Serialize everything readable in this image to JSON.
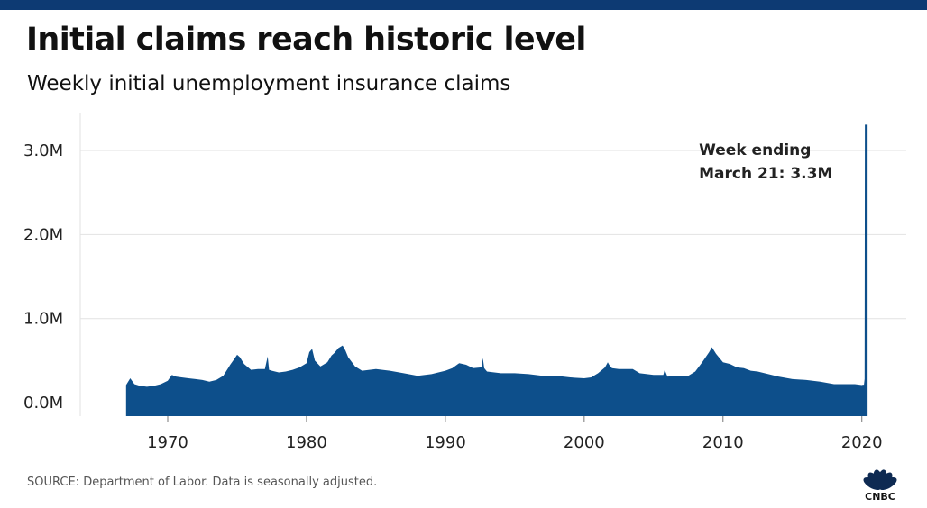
{
  "header": {
    "title": "Initial claims reach historic level",
    "subtitle": "Weekly initial unemployment insurance claims"
  },
  "footer": {
    "source": "SOURCE: Department of Labor. Data is seasonally adjusted.",
    "logo_text": "CNBC"
  },
  "colors": {
    "bar": "#0d4f8b",
    "topbar": "#0d3a73",
    "grid": "#e2e2e2"
  },
  "chart_data": {
    "type": "area",
    "title": "Initial claims reach historic level",
    "subtitle": "Weekly initial unemployment insurance claims",
    "xlabel": "",
    "ylabel": "",
    "x_ticks": [
      1970,
      1980,
      1990,
      2000,
      2010,
      2020
    ],
    "y_ticks": [
      {
        "value": 0,
        "label": "0.0M"
      },
      {
        "value": 1000000,
        "label": "1.0M"
      },
      {
        "value": 2000000,
        "label": "2.0M"
      },
      {
        "value": 3000000,
        "label": "3.0M"
      }
    ],
    "xlim": [
      1963.7,
      2023.2
    ],
    "ylim": [
      -160000,
      3450000
    ],
    "grid": true,
    "annotation": {
      "lines": [
        "Week ending",
        "March 21: 3.3M"
      ],
      "x": 2020.22,
      "y": 3307000
    },
    "series": [
      {
        "x": [
          1967.0,
          1967.3,
          1967.6,
          1968.0,
          1968.5,
          1969.0,
          1969.5,
          1970.0,
          1970.3,
          1970.6,
          1971.0,
          1971.5,
          1972.0,
          1972.5,
          1973.0,
          1973.5,
          1974.0,
          1974.5,
          1974.8,
          1975.0,
          1975.2,
          1975.5,
          1976.0,
          1976.5,
          1977.0,
          1977.2,
          1977.3,
          1977.5,
          1978.0,
          1978.5,
          1979.0,
          1979.5,
          1980.0,
          1980.2,
          1980.4,
          1980.6,
          1981.0,
          1981.5,
          1981.8,
          1982.0,
          1982.3,
          1982.6,
          1982.8,
          1983.0,
          1983.5,
          1984.0,
          1985.0,
          1986.0,
          1987.0,
          1988.0,
          1989.0,
          1990.0,
          1990.5,
          1991.0,
          1991.5,
          1992.0,
          1992.6,
          1992.7,
          1992.8,
          1993.0,
          1994.0,
          1995.0,
          1996.0,
          1997.0,
          1998.0,
          1999.0,
          2000.0,
          2000.5,
          2001.0,
          2001.5,
          2001.7,
          2001.8,
          2002.0,
          2002.5,
          2003.0,
          2003.5,
          2004.0,
          2005.0,
          2005.7,
          2005.8,
          2006.0,
          2007.0,
          2007.5,
          2008.0,
          2008.5,
          2009.0,
          2009.2,
          2009.5,
          2010.0,
          2010.5,
          2011.0,
          2011.5,
          2012.0,
          2012.5,
          2013.0,
          2014.0,
          2015.0,
          2016.0,
          2017.0,
          2018.0,
          2019.0,
          2019.5,
          2020.0,
          2020.1,
          2020.15,
          2020.2,
          2020.22
        ],
        "values": [
          210000,
          290000,
          220000,
          200000,
          190000,
          200000,
          220000,
          260000,
          330000,
          310000,
          300000,
          290000,
          280000,
          270000,
          250000,
          270000,
          320000,
          450000,
          520000,
          570000,
          540000,
          460000,
          390000,
          400000,
          400000,
          550000,
          390000,
          380000,
          360000,
          370000,
          390000,
          420000,
          470000,
          600000,
          640000,
          500000,
          430000,
          480000,
          560000,
          590000,
          650000,
          680000,
          620000,
          540000,
          430000,
          380000,
          400000,
          380000,
          350000,
          320000,
          340000,
          380000,
          410000,
          470000,
          450000,
          410000,
          420000,
          530000,
          410000,
          370000,
          350000,
          350000,
          340000,
          320000,
          320000,
          300000,
          290000,
          300000,
          350000,
          420000,
          480000,
          450000,
          410000,
          400000,
          400000,
          400000,
          350000,
          330000,
          330000,
          390000,
          310000,
          320000,
          320000,
          370000,
          480000,
          600000,
          660000,
          580000,
          480000,
          460000,
          420000,
          410000,
          380000,
          370000,
          350000,
          310000,
          280000,
          270000,
          250000,
          220000,
          220000,
          220000,
          210000,
          215000,
          211000,
          282000,
          3307000
        ]
      }
    ]
  }
}
